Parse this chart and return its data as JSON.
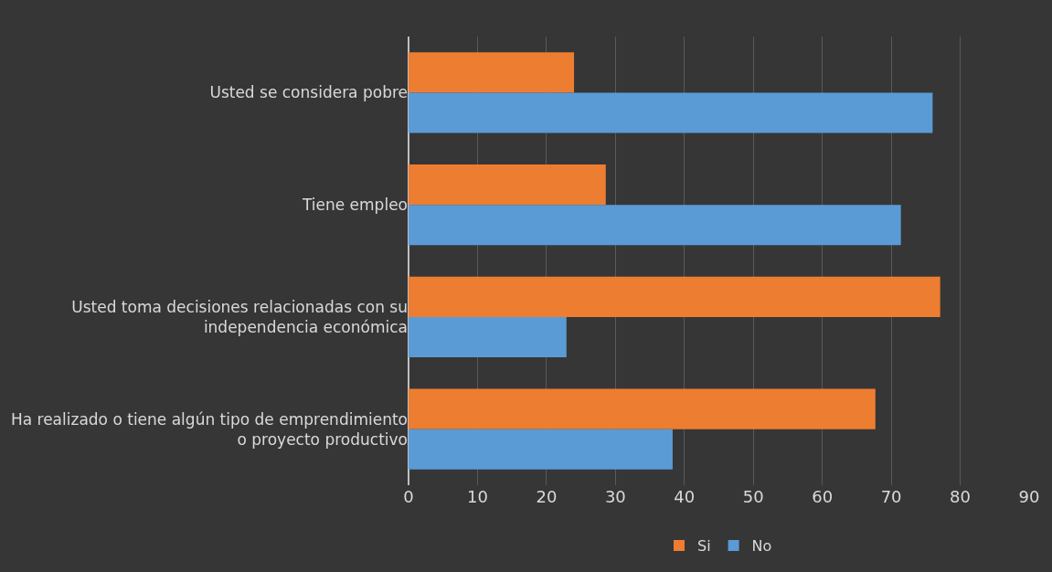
{
  "chart_data": {
    "type": "bar",
    "orientation": "horizontal",
    "categories": [
      "Usted se considera pobre",
      "Tiene empleo",
      "Usted toma decisiones relacionadas con su independencia económica",
      "Ha realizado o tiene algún tipo de emprendimiento o proyecto productivo"
    ],
    "series": [
      {
        "name": "Si",
        "color": "#ed7d31",
        "values": [
          24,
          28.6,
          77.1,
          67.7
        ]
      },
      {
        "name": "No",
        "color": "#5b9bd5",
        "values": [
          76,
          71.4,
          22.9,
          38.3
        ]
      }
    ],
    "xlim": [
      0,
      90
    ],
    "xticks": [
      0,
      10,
      20,
      30,
      40,
      50,
      60,
      70,
      80,
      90
    ],
    "grid": "x",
    "legend": "bottom"
  }
}
